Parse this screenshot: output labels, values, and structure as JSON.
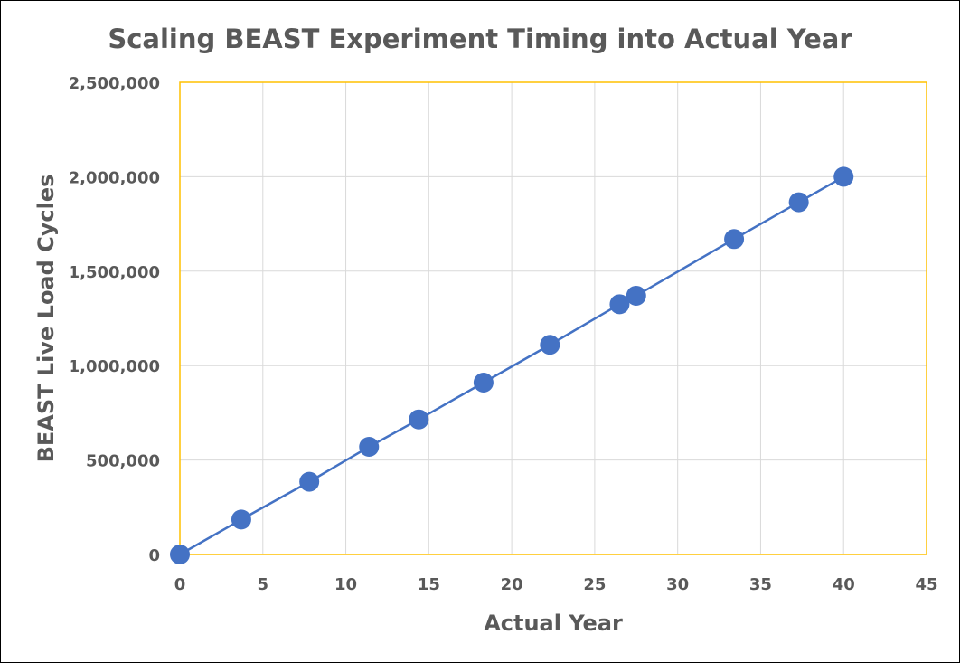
{
  "chart_data": {
    "type": "scatter",
    "title": "Scaling BEAST Experiment Timing into Actual Year",
    "xlabel": "Actual Year",
    "ylabel": "BEAST Live Load Cycles",
    "xlim": [
      0,
      45
    ],
    "ylim": [
      0,
      2500000
    ],
    "x_ticks": [
      0,
      5,
      10,
      15,
      20,
      25,
      30,
      35,
      40,
      45
    ],
    "y_ticks": [
      0,
      500000,
      1000000,
      1500000,
      2000000,
      2500000
    ],
    "x_tick_labels": [
      "0",
      "5",
      "10",
      "15",
      "20",
      "25",
      "30",
      "35",
      "40",
      "45"
    ],
    "y_tick_labels": [
      "0",
      "500,000",
      "1,000,000",
      "1,500,000",
      "2,000,000",
      "2,500,000"
    ],
    "grid": true,
    "legend": false,
    "series": [
      {
        "name": "BEAST Live Load Cycles",
        "color": "#4472c4",
        "line": true,
        "x": [
          0,
          3.7,
          7.8,
          11.4,
          14.4,
          18.3,
          22.3,
          26.5,
          27.5,
          33.4,
          37.3,
          40
        ],
        "y": [
          0,
          185000,
          385000,
          570000,
          715000,
          910000,
          1110000,
          1325000,
          1370000,
          1670000,
          1865000,
          2000000
        ]
      }
    ]
  },
  "colors": {
    "plot_border": "#ffc000",
    "grid": "#d9d9d9",
    "text": "#595959"
  }
}
